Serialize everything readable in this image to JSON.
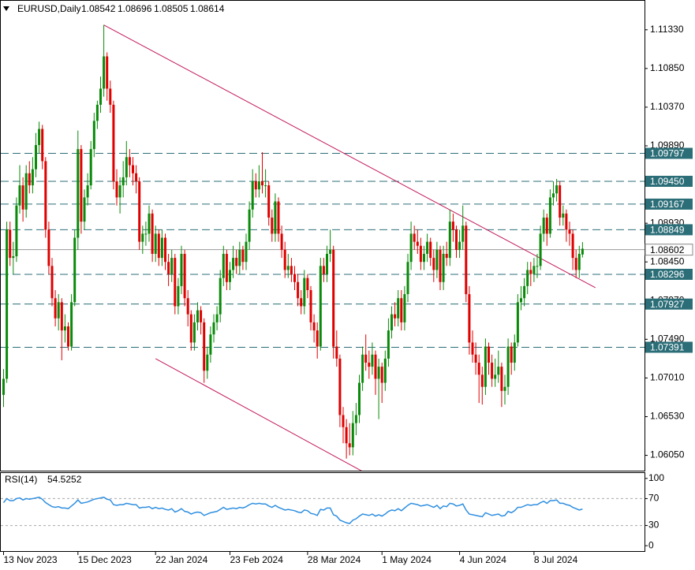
{
  "chart_data": {
    "type": "candlestick",
    "symbol": "EURUSD,Daily",
    "up_color": "#0a8a0a",
    "down_color": "#e00000",
    "ylim": [
      1.0586,
      1.1168
    ],
    "yticks": [
      {
        "value": 1.1133,
        "label": "1.11330"
      },
      {
        "value": 1.1085,
        "label": "1.10850"
      },
      {
        "value": 1.1037,
        "label": "1.10370"
      },
      {
        "value": 1.0989,
        "label": "1.09890"
      },
      {
        "value": 1.0893,
        "label": "1.08930"
      },
      {
        "value": 1.0845,
        "label": "1.08450"
      },
      {
        "value": 1.0797,
        "label": "1.07970"
      },
      {
        "value": 1.0749,
        "label": "1.07490"
      },
      {
        "value": 1.0701,
        "label": "1.07010"
      },
      {
        "value": 1.0653,
        "label": "1.06530"
      },
      {
        "value": 1.0605,
        "label": "1.06050"
      }
    ],
    "xticks": [
      {
        "value": 0,
        "label": "13 Nov 2023"
      },
      {
        "value": 23,
        "label": "15 Dec 2023"
      },
      {
        "value": 47,
        "label": "22 Jan 2024"
      },
      {
        "value": 70,
        "label": "23 Feb 2024"
      },
      {
        "value": 94,
        "label": "28 Mar 2024"
      },
      {
        "value": 117,
        "label": "1 May 2024"
      },
      {
        "value": 141,
        "label": "4 Jun 2024"
      },
      {
        "value": 164,
        "label": "8 Jul 2024"
      }
    ],
    "levels": [
      {
        "value": 1.09797,
        "label": "1.09797"
      },
      {
        "value": 1.0945,
        "label": "1.09450"
      },
      {
        "value": 1.09167,
        "label": "1.09167"
      },
      {
        "value": 1.08849,
        "label": "1.08849"
      },
      {
        "value": 1.08296,
        "label": "1.08296"
      },
      {
        "value": 1.07927,
        "label": "1.07927"
      },
      {
        "value": 1.07391,
        "label": "1.07391"
      }
    ],
    "level_color": "#2c6e78",
    "price_line": {
      "value": 1.08602,
      "label": "1.08602"
    },
    "trendline_color": "#c2185b",
    "trendlines": [
      {
        "start": [
          31,
          1.1139
        ],
        "end": [
          183,
          1.0813
        ]
      },
      {
        "start": [
          47,
          1.0725
        ],
        "end": [
          111,
          1.0585
        ]
      }
    ],
    "ohlc": [
      [
        1.068,
        1.0712,
        1.0665,
        1.07
      ],
      [
        1.07,
        1.0895,
        1.0695,
        1.0885
      ],
      [
        1.0885,
        1.0895,
        1.084,
        1.085
      ],
      [
        1.085,
        1.087,
        1.083,
        1.0852
      ],
      [
        1.0852,
        1.0925,
        1.0845,
        1.0915
      ],
      [
        1.0915,
        1.0965,
        1.0905,
        1.094
      ],
      [
        1.094,
        1.095,
        1.0895,
        1.091
      ],
      [
        1.091,
        1.0965,
        1.09,
        1.0955
      ],
      [
        1.0955,
        1.097,
        1.093,
        1.094
      ],
      [
        1.094,
        1.0975,
        1.093,
        1.096
      ],
      [
        1.096,
        1.1005,
        1.095,
        1.099
      ],
      [
        1.099,
        1.1019,
        1.098,
        1.101
      ],
      [
        1.101,
        1.1015,
        1.096,
        1.097
      ],
      [
        1.097,
        1.0975,
        1.0875,
        1.0885
      ],
      [
        1.0885,
        1.0895,
        1.083,
        1.084
      ],
      [
        1.084,
        1.085,
        1.079,
        1.08
      ],
      [
        1.08,
        1.081,
        1.0765,
        1.0775
      ],
      [
        1.0775,
        1.0805,
        1.076,
        1.0795
      ],
      [
        1.0795,
        1.08,
        1.0723,
        1.076
      ],
      [
        1.076,
        1.078,
        1.0745,
        1.0765
      ],
      [
        1.0765,
        1.077,
        1.0735,
        1.074
      ],
      [
        1.074,
        1.0805,
        1.0735,
        1.0795
      ],
      [
        1.0795,
        1.0885,
        1.079,
        1.0875
      ],
      [
        1.0875,
        1.1008,
        1.086,
        1.0985
      ],
      [
        1.0985,
        1.099,
        1.088,
        1.0895
      ],
      [
        1.0895,
        1.0935,
        1.0885,
        1.0925
      ],
      [
        1.0925,
        1.0955,
        1.0915,
        1.094
      ],
      [
        1.094,
        1.0995,
        1.0935,
        1.0985
      ],
      [
        1.0985,
        1.103,
        1.0975,
        1.102
      ],
      [
        1.102,
        1.1045,
        1.101,
        1.104
      ],
      [
        1.104,
        1.1075,
        1.103,
        1.106
      ],
      [
        1.106,
        1.1139,
        1.105,
        1.11
      ],
      [
        1.11,
        1.1105,
        1.1045,
        1.106
      ],
      [
        1.106,
        1.107,
        1.103,
        1.104
      ],
      [
        1.104,
        1.1045,
        1.0935,
        1.0945
      ],
      [
        1.0945,
        1.096,
        1.0915,
        1.0925
      ],
      [
        1.0925,
        1.095,
        1.0905,
        1.094
      ],
      [
        1.094,
        1.097,
        1.0925,
        1.095
      ],
      [
        1.095,
        1.0995,
        1.094,
        1.0975
      ],
      [
        1.0975,
        1.0985,
        1.095,
        1.0965
      ],
      [
        1.0965,
        1.0975,
        1.094,
        1.0955
      ],
      [
        1.0955,
        1.0965,
        1.093,
        1.0945
      ],
      [
        1.0945,
        1.095,
        1.086,
        1.087
      ],
      [
        1.087,
        1.089,
        1.0855,
        1.088
      ],
      [
        1.088,
        1.0895,
        1.0865,
        1.088
      ],
      [
        1.088,
        1.0915,
        1.087,
        1.0905
      ],
      [
        1.0905,
        1.091,
        1.0845,
        1.0855
      ],
      [
        1.0855,
        1.089,
        1.0845,
        1.088
      ],
      [
        1.088,
        1.0885,
        1.084,
        1.085
      ],
      [
        1.085,
        1.0885,
        1.084,
        1.0875
      ],
      [
        1.0875,
        1.088,
        1.0835,
        1.0845
      ],
      [
        1.0845,
        1.0855,
        1.0815,
        1.083
      ],
      [
        1.083,
        1.086,
        1.082,
        1.085
      ],
      [
        1.085,
        1.0855,
        1.078,
        1.079
      ],
      [
        1.079,
        1.0825,
        1.078,
        1.0815
      ],
      [
        1.0815,
        1.0865,
        1.0805,
        1.0855
      ],
      [
        1.0855,
        1.086,
        1.079,
        1.08
      ],
      [
        1.08,
        1.081,
        1.0765,
        1.078
      ],
      [
        1.078,
        1.0785,
        1.0735,
        1.0745
      ],
      [
        1.0745,
        1.078,
        1.0735,
        1.077
      ],
      [
        1.077,
        1.0795,
        1.076,
        1.0785
      ],
      [
        1.0785,
        1.079,
        1.0755,
        1.077
      ],
      [
        1.077,
        1.0775,
        1.0695,
        1.071
      ],
      [
        1.071,
        1.074,
        1.07,
        1.073
      ],
      [
        1.073,
        1.0765,
        1.072,
        1.0755
      ],
      [
        1.0755,
        1.078,
        1.0745,
        1.077
      ],
      [
        1.077,
        1.079,
        1.076,
        1.078
      ],
      [
        1.078,
        1.0835,
        1.077,
        1.0825
      ],
      [
        1.0825,
        1.0865,
        1.0815,
        1.0855
      ],
      [
        1.0855,
        1.086,
        1.081,
        1.082
      ],
      [
        1.082,
        1.0845,
        1.081,
        1.0835
      ],
      [
        1.0835,
        1.0865,
        1.0825,
        1.085
      ],
      [
        1.085,
        1.086,
        1.083,
        1.084
      ],
      [
        1.084,
        1.087,
        1.083,
        1.086
      ],
      [
        1.086,
        1.0865,
        1.0835,
        1.0845
      ],
      [
        1.0845,
        1.088,
        1.0835,
        1.087
      ],
      [
        1.087,
        1.092,
        1.086,
        1.091
      ],
      [
        1.091,
        1.096,
        1.09,
        1.0945
      ],
      [
        1.0945,
        1.0955,
        1.0925,
        1.0935
      ],
      [
        1.0935,
        1.0965,
        1.0925,
        1.0945
      ],
      [
        1.0945,
        1.0981,
        1.093,
        1.094
      ],
      [
        1.094,
        1.096,
        1.0925,
        1.094
      ],
      [
        1.094,
        1.0945,
        1.089,
        1.09
      ],
      [
        1.09,
        1.091,
        1.087,
        1.088
      ],
      [
        1.088,
        1.093,
        1.087,
        1.092
      ],
      [
        1.092,
        1.0925,
        1.087,
        1.088
      ],
      [
        1.088,
        1.089,
        1.085,
        1.086
      ],
      [
        1.086,
        1.087,
        1.0825,
        1.0835
      ],
      [
        1.0835,
        1.0855,
        1.0825,
        1.084
      ],
      [
        1.084,
        1.085,
        1.082,
        1.083
      ],
      [
        1.083,
        1.084,
        1.081,
        1.082
      ],
      [
        1.082,
        1.083,
        1.079,
        1.08
      ],
      [
        1.08,
        1.081,
        1.078,
        1.079
      ],
      [
        1.079,
        1.0835,
        1.078,
        1.0825
      ],
      [
        1.0825,
        1.083,
        1.08,
        1.081
      ],
      [
        1.081,
        1.0815,
        1.076,
        1.077
      ],
      [
        1.077,
        1.078,
        1.0745,
        1.076
      ],
      [
        1.076,
        1.077,
        1.0725,
        1.074
      ],
      [
        1.074,
        1.085,
        1.0735,
        1.084
      ],
      [
        1.084,
        1.085,
        1.082,
        1.083
      ],
      [
        1.083,
        1.0865,
        1.082,
        1.0855
      ],
      [
        1.0855,
        1.0885,
        1.0845,
        1.086
      ],
      [
        1.086,
        1.0865,
        1.0725,
        1.074
      ],
      [
        1.074,
        1.076,
        1.0715,
        1.0725
      ],
      [
        1.0725,
        1.073,
        1.064,
        1.0655
      ],
      [
        1.0655,
        1.0665,
        1.062,
        1.064
      ],
      [
        1.064,
        1.065,
        1.0601,
        1.062
      ],
      [
        1.062,
        1.0645,
        1.0605,
        1.0615
      ],
      [
        1.0615,
        1.066,
        1.0605,
        1.0645
      ],
      [
        1.0645,
        1.067,
        1.063,
        1.0655
      ],
      [
        1.0655,
        1.0705,
        1.0645,
        1.0695
      ],
      [
        1.0695,
        1.074,
        1.0685,
        1.073
      ],
      [
        1.073,
        1.0755,
        1.071,
        1.072
      ],
      [
        1.072,
        1.0735,
        1.07,
        1.0715
      ],
      [
        1.0715,
        1.0745,
        1.0705,
        1.073
      ],
      [
        1.073,
        1.0735,
        1.068,
        1.07
      ],
      [
        1.07,
        1.0725,
        1.065,
        1.0715
      ],
      [
        1.0715,
        1.072,
        1.067,
        1.0695
      ],
      [
        1.0695,
        1.0735,
        1.0685,
        1.0725
      ],
      [
        1.0725,
        1.0775,
        1.0715,
        1.076
      ],
      [
        1.076,
        1.079,
        1.075,
        1.078
      ],
      [
        1.078,
        1.0795,
        1.0765,
        1.0775
      ],
      [
        1.0775,
        1.081,
        1.0765,
        1.08
      ],
      [
        1.08,
        1.081,
        1.076,
        1.077
      ],
      [
        1.077,
        1.0815,
        1.076,
        1.0805
      ],
      [
        1.0805,
        1.0855,
        1.0795,
        1.0845
      ],
      [
        1.0845,
        1.0895,
        1.0835,
        1.088
      ],
      [
        1.088,
        1.089,
        1.086,
        1.087
      ],
      [
        1.087,
        1.0885,
        1.0855,
        1.0865
      ],
      [
        1.0865,
        1.0875,
        1.0835,
        1.0845
      ],
      [
        1.0845,
        1.0865,
        1.0835,
        1.0855
      ],
      [
        1.0855,
        1.088,
        1.0845,
        1.087
      ],
      [
        1.087,
        1.0875,
        1.084,
        1.085
      ],
      [
        1.085,
        1.086,
        1.082,
        1.0835
      ],
      [
        1.0835,
        1.087,
        1.0825,
        1.086
      ],
      [
        1.086,
        1.0865,
        1.081,
        1.082
      ],
      [
        1.082,
        1.0865,
        1.081,
        1.0855
      ],
      [
        1.0855,
        1.087,
        1.084,
        1.085
      ],
      [
        1.085,
        1.091,
        1.084,
        1.0895
      ],
      [
        1.0895,
        1.0905,
        1.087,
        1.0885
      ],
      [
        1.0885,
        1.089,
        1.085,
        1.086
      ],
      [
        1.086,
        1.0885,
        1.085,
        1.087
      ],
      [
        1.087,
        1.0915,
        1.086,
        1.089
      ],
      [
        1.089,
        1.0895,
        1.0795,
        1.0805
      ],
      [
        1.0805,
        1.0815,
        1.073,
        1.0745
      ],
      [
        1.0745,
        1.076,
        1.072,
        1.073
      ],
      [
        1.073,
        1.0745,
        1.0705,
        1.072
      ],
      [
        1.072,
        1.073,
        1.067,
        1.0705
      ],
      [
        1.0705,
        1.0715,
        1.0668,
        1.069
      ],
      [
        1.069,
        1.075,
        1.068,
        1.074
      ],
      [
        1.074,
        1.0745,
        1.0705,
        1.072
      ],
      [
        1.072,
        1.073,
        1.069,
        1.07
      ],
      [
        1.07,
        1.0725,
        1.069,
        1.0705
      ],
      [
        1.0705,
        1.0735,
        1.0695,
        1.0715
      ],
      [
        1.0715,
        1.072,
        1.0665,
        1.0685
      ],
      [
        1.0685,
        1.0705,
        1.0668,
        1.069
      ],
      [
        1.069,
        1.075,
        1.068,
        1.074
      ],
      [
        1.074,
        1.0745,
        1.0705,
        1.072
      ],
      [
        1.072,
        1.0755,
        1.071,
        1.0745
      ],
      [
        1.0745,
        1.0805,
        1.074,
        1.0795
      ],
      [
        1.0795,
        1.0815,
        1.0785,
        1.08
      ],
      [
        1.08,
        1.0825,
        1.079,
        1.0815
      ],
      [
        1.0815,
        1.0845,
        1.0805,
        1.0835
      ],
      [
        1.0835,
        1.0845,
        1.0815,
        1.083
      ],
      [
        1.083,
        1.085,
        1.082,
        1.084
      ],
      [
        1.084,
        1.0855,
        1.0825,
        1.084
      ],
      [
        1.084,
        1.089,
        1.0835,
        1.088
      ],
      [
        1.088,
        1.091,
        1.087,
        1.09
      ],
      [
        1.09,
        1.0905,
        1.0865,
        1.088
      ],
      [
        1.088,
        1.0935,
        1.0875,
        1.0925
      ],
      [
        1.0925,
        1.0945,
        1.0915,
        1.093
      ],
      [
        1.093,
        1.0948,
        1.092,
        1.094
      ],
      [
        1.094,
        1.0945,
        1.089,
        1.09
      ],
      [
        1.09,
        1.0915,
        1.089,
        1.0905
      ],
      [
        1.0905,
        1.091,
        1.087,
        1.0885
      ],
      [
        1.0885,
        1.0895,
        1.0865,
        1.088
      ],
      [
        1.088,
        1.0885,
        1.0835,
        1.085
      ],
      [
        1.085,
        1.086,
        1.0825,
        1.0835
      ],
      [
        1.0835,
        1.0865,
        1.0825,
        1.0855
      ],
      [
        1.08542,
        1.08696,
        1.08505,
        1.08614
      ]
    ],
    "indicator": {
      "title": "RSI(14)",
      "color": "#2f8fe0",
      "ylim": [
        -8,
        108
      ],
      "yticks": [
        100,
        70,
        30,
        0
      ],
      "levels": [
        70,
        30
      ],
      "values": [
        64,
        70,
        67,
        67,
        70,
        71,
        68,
        70,
        69,
        70,
        71,
        72,
        69,
        64,
        61,
        58,
        57,
        58,
        56,
        56,
        55,
        59,
        63,
        68,
        63,
        64,
        65,
        67,
        69,
        70,
        71,
        72,
        69,
        68,
        61,
        60,
        61,
        61,
        63,
        62,
        61,
        61,
        56,
        57,
        57,
        58,
        55,
        57,
        55,
        56,
        54,
        53,
        55,
        50,
        52,
        55,
        51,
        50,
        47,
        49,
        50,
        49,
        45,
        47,
        49,
        50,
        51,
        54,
        57,
        54,
        55,
        56,
        55,
        57,
        56,
        58,
        61,
        63,
        62,
        63,
        62,
        62,
        59,
        57,
        60,
        57,
        55,
        53,
        54,
        53,
        52,
        50,
        49,
        53,
        52,
        48,
        47,
        45,
        54,
        53,
        56,
        56,
        46,
        44,
        38,
        36,
        34,
        33,
        38,
        40,
        44,
        47,
        46,
        45,
        47,
        44,
        46,
        44,
        47,
        51,
        53,
        52,
        55,
        52,
        56,
        60,
        63,
        62,
        61,
        59,
        60,
        61,
        59,
        57,
        60,
        55,
        59,
        58,
        63,
        62,
        59,
        60,
        62,
        53,
        47,
        46,
        45,
        44,
        43,
        49,
        47,
        45,
        46,
        47,
        44,
        45,
        51,
        49,
        52,
        57,
        57,
        59,
        61,
        60,
        61,
        61,
        64,
        66,
        63,
        67,
        67,
        68,
        63,
        63,
        61,
        60,
        57,
        55,
        53,
        54.5252
      ]
    }
  }
}
